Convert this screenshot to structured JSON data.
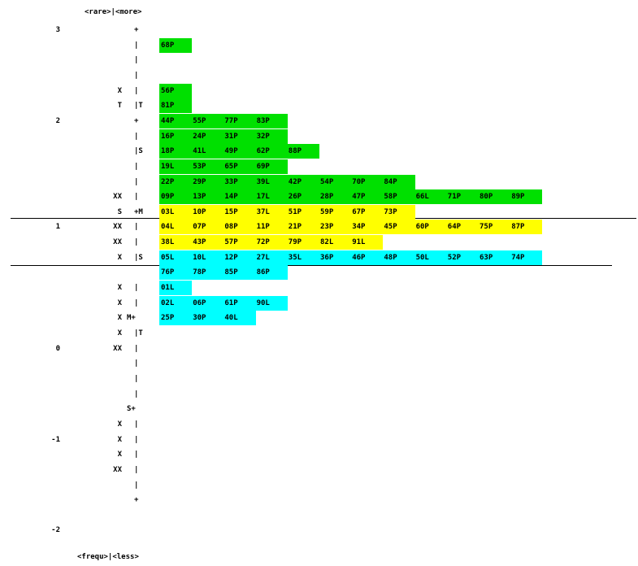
{
  "header_label": "<rare>|<more>",
  "footer_label": "<frequ>|<less>",
  "chart_data": {
    "type": "table",
    "ylim": [
      -2,
      3
    ],
    "colors": {
      "high": "#00e000",
      "mid": "#ffff00",
      "low": "#00ffff"
    },
    "scale_labels": [
      {
        "value": "3",
        "row": 0
      },
      {
        "value": "2",
        "row": 6
      },
      {
        "value": "1",
        "row": 13
      },
      {
        "value": "0",
        "row": 21
      },
      {
        "value": "-1",
        "row": 27
      },
      {
        "value": "-2",
        "row": 33
      }
    ],
    "rows": [
      {
        "persons": "",
        "axis": "+",
        "items": []
      },
      {
        "persons": "",
        "axis": "|",
        "items": [
          "68P"
        ],
        "band": "high"
      },
      {
        "persons": "",
        "axis": "|",
        "items": []
      },
      {
        "persons": "",
        "axis": "|",
        "items": []
      },
      {
        "persons": "X",
        "axis": "|",
        "items": [
          "56P"
        ],
        "band": "high"
      },
      {
        "persons": "T",
        "axis": "|T",
        "items": [
          "81P"
        ],
        "band": "high"
      },
      {
        "persons": "",
        "axis": "+",
        "items": [
          "44P",
          "55P",
          "77P",
          "83P"
        ],
        "band": "high"
      },
      {
        "persons": "",
        "axis": "|",
        "items": [
          "16P",
          "24P",
          "31P",
          "32P"
        ],
        "band": "high"
      },
      {
        "persons": "",
        "axis": "|S",
        "items": [
          "18P",
          "41L",
          "49P",
          "62P",
          "88P"
        ],
        "band": "high"
      },
      {
        "persons": "",
        "axis": "|",
        "items": [
          "19L",
          "53P",
          "65P",
          "69P"
        ],
        "band": "high"
      },
      {
        "persons": "",
        "axis": "|",
        "items": [
          "22P",
          "29P",
          "33P",
          "39L",
          "42P",
          "54P",
          "70P",
          "84P"
        ],
        "band": "high"
      },
      {
        "persons": "XX",
        "axis": "|",
        "items": [
          "09P",
          "13P",
          "14P",
          "17L",
          "26P",
          "28P",
          "47P",
          "58P",
          "66L",
          "71P",
          "80P",
          "89P"
        ],
        "band": "high"
      },
      {
        "persons": "S",
        "axis": "+M",
        "items": [
          "03L",
          "10P",
          "15P",
          "37L",
          "51P",
          "59P",
          "67P",
          "73P"
        ],
        "band": "mid"
      },
      {
        "persons": "XX",
        "axis": "|",
        "items": [
          "04L",
          "07P",
          "08P",
          "11P",
          "21P",
          "23P",
          "34P",
          "45P",
          "60P",
          "64P",
          "75P",
          "87P"
        ],
        "band": "mid"
      },
      {
        "persons": "XX",
        "axis": "|",
        "items": [
          "38L",
          "43P",
          "57P",
          "72P",
          "79P",
          "82L",
          "91L"
        ],
        "band": "mid"
      },
      {
        "persons": "X",
        "axis": "|S",
        "items": [
          "05L",
          "10L",
          "12P",
          "27L",
          "35L",
          "36P",
          "46P",
          "48P",
          "50L",
          "52P",
          "63P",
          "74P"
        ],
        "band": "low"
      },
      {
        "persons": "",
        "axis": "",
        "items": [
          "76P",
          "78P",
          "85P",
          "86P"
        ],
        "band": "low"
      },
      {
        "persons": "X",
        "axis": "|",
        "items": [
          "01L"
        ],
        "band": "low"
      },
      {
        "persons": "X",
        "axis": "|",
        "items": [
          "02L",
          "06P",
          "61P",
          "90L"
        ],
        "band": "low"
      },
      {
        "persons": "X",
        "axis": "M+",
        "items": [
          "25P",
          "30P",
          "40L"
        ],
        "band": "low"
      },
      {
        "persons": "X",
        "axis": "|T",
        "items": []
      },
      {
        "persons": "XX",
        "axis": "|",
        "items": []
      },
      {
        "persons": "",
        "axis": "|",
        "items": []
      },
      {
        "persons": "",
        "axis": "|",
        "items": []
      },
      {
        "persons": "",
        "axis": "|",
        "items": []
      },
      {
        "persons": "",
        "axis": "S+",
        "items": []
      },
      {
        "persons": "X",
        "axis": "|",
        "items": []
      },
      {
        "persons": "X",
        "axis": "|",
        "items": []
      },
      {
        "persons": "X",
        "axis": "|",
        "items": []
      },
      {
        "persons": "XX",
        "axis": "|",
        "items": []
      },
      {
        "persons": "",
        "axis": "|",
        "items": []
      },
      {
        "persons": "",
        "axis": "+",
        "items": []
      }
    ]
  }
}
